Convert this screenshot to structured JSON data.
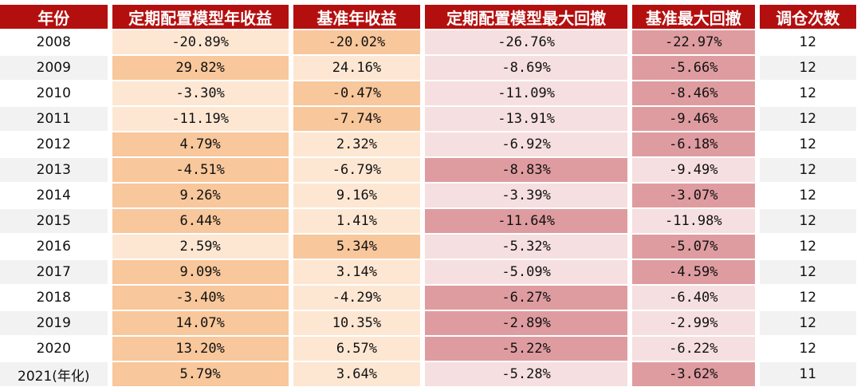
{
  "table": {
    "headers": [
      "年份",
      "定期配置模型年收益",
      "基准年收益",
      "定期配置模型最大回撤",
      "基准最大回撤",
      "调仓次数"
    ],
    "rows": [
      {
        "year": "2008",
        "model_return": "-20.89%",
        "bench_return": "-20.02%",
        "model_dd": "-26.76%",
        "bench_dd": "-22.97%",
        "trades": "12",
        "shade": [
          "lo",
          "do",
          "lr",
          "dr"
        ]
      },
      {
        "year": "2009",
        "model_return": "29.82%",
        "bench_return": "24.16%",
        "model_dd": "-8.69%",
        "bench_dd": "-5.66%",
        "trades": "12",
        "shade": [
          "do",
          "lo",
          "lr",
          "dr"
        ]
      },
      {
        "year": "2010",
        "model_return": "-3.30%",
        "bench_return": "-0.47%",
        "model_dd": "-11.09%",
        "bench_dd": "-8.46%",
        "trades": "12",
        "shade": [
          "lo",
          "do",
          "lr",
          "dr"
        ]
      },
      {
        "year": "2011",
        "model_return": "-11.19%",
        "bench_return": "-7.74%",
        "model_dd": "-13.91%",
        "bench_dd": "-9.46%",
        "trades": "12",
        "shade": [
          "lo",
          "do",
          "lr",
          "dr"
        ]
      },
      {
        "year": "2012",
        "model_return": "4.79%",
        "bench_return": "2.32%",
        "model_dd": "-6.92%",
        "bench_dd": "-6.18%",
        "trades": "12",
        "shade": [
          "do",
          "lo",
          "lr",
          "dr"
        ]
      },
      {
        "year": "2013",
        "model_return": "-4.51%",
        "bench_return": "-6.79%",
        "model_dd": "-8.83%",
        "bench_dd": "-9.49%",
        "trades": "12",
        "shade": [
          "do",
          "lo",
          "dr",
          "lr"
        ]
      },
      {
        "year": "2014",
        "model_return": "9.26%",
        "bench_return": "9.16%",
        "model_dd": "-3.39%",
        "bench_dd": "-3.07%",
        "trades": "12",
        "shade": [
          "do",
          "lo",
          "lr",
          "dr"
        ]
      },
      {
        "year": "2015",
        "model_return": "6.44%",
        "bench_return": "1.41%",
        "model_dd": "-11.64%",
        "bench_dd": "-11.98%",
        "trades": "12",
        "shade": [
          "do",
          "lo",
          "dr",
          "lr"
        ]
      },
      {
        "year": "2016",
        "model_return": "2.59%",
        "bench_return": "5.34%",
        "model_dd": "-5.32%",
        "bench_dd": "-5.07%",
        "trades": "12",
        "shade": [
          "lo",
          "do",
          "lr",
          "dr"
        ]
      },
      {
        "year": "2017",
        "model_return": "9.09%",
        "bench_return": "3.14%",
        "model_dd": "-5.09%",
        "bench_dd": "-4.59%",
        "trades": "12",
        "shade": [
          "do",
          "lo",
          "lr",
          "dr"
        ]
      },
      {
        "year": "2018",
        "model_return": "-3.40%",
        "bench_return": "-4.29%",
        "model_dd": "-6.27%",
        "bench_dd": "-6.40%",
        "trades": "12",
        "shade": [
          "do",
          "lo",
          "dr",
          "lr"
        ]
      },
      {
        "year": "2019",
        "model_return": "14.07%",
        "bench_return": "10.35%",
        "model_dd": "-2.89%",
        "bench_dd": "-2.99%",
        "trades": "12",
        "shade": [
          "do",
          "lo",
          "dr",
          "lr"
        ]
      },
      {
        "year": "2020",
        "model_return": "13.20%",
        "bench_return": "6.57%",
        "model_dd": "-5.22%",
        "bench_dd": "-6.22%",
        "trades": "12",
        "shade": [
          "do",
          "lo",
          "dr",
          "lr"
        ]
      },
      {
        "year": "2021(年化)",
        "model_return": "5.79%",
        "bench_return": "3.64%",
        "model_dd": "-5.28%",
        "bench_dd": "-3.62%",
        "trades": "11",
        "shade": [
          "do",
          "lo",
          "lr",
          "dr"
        ]
      }
    ]
  },
  "colors": {
    "header_bg": "#b40f0f",
    "do": "#f8c79b",
    "lo": "#fde7d3",
    "dr": "#df9ca0",
    "lr": "#f6dfe0",
    "stripe": "#f2f2f2"
  }
}
